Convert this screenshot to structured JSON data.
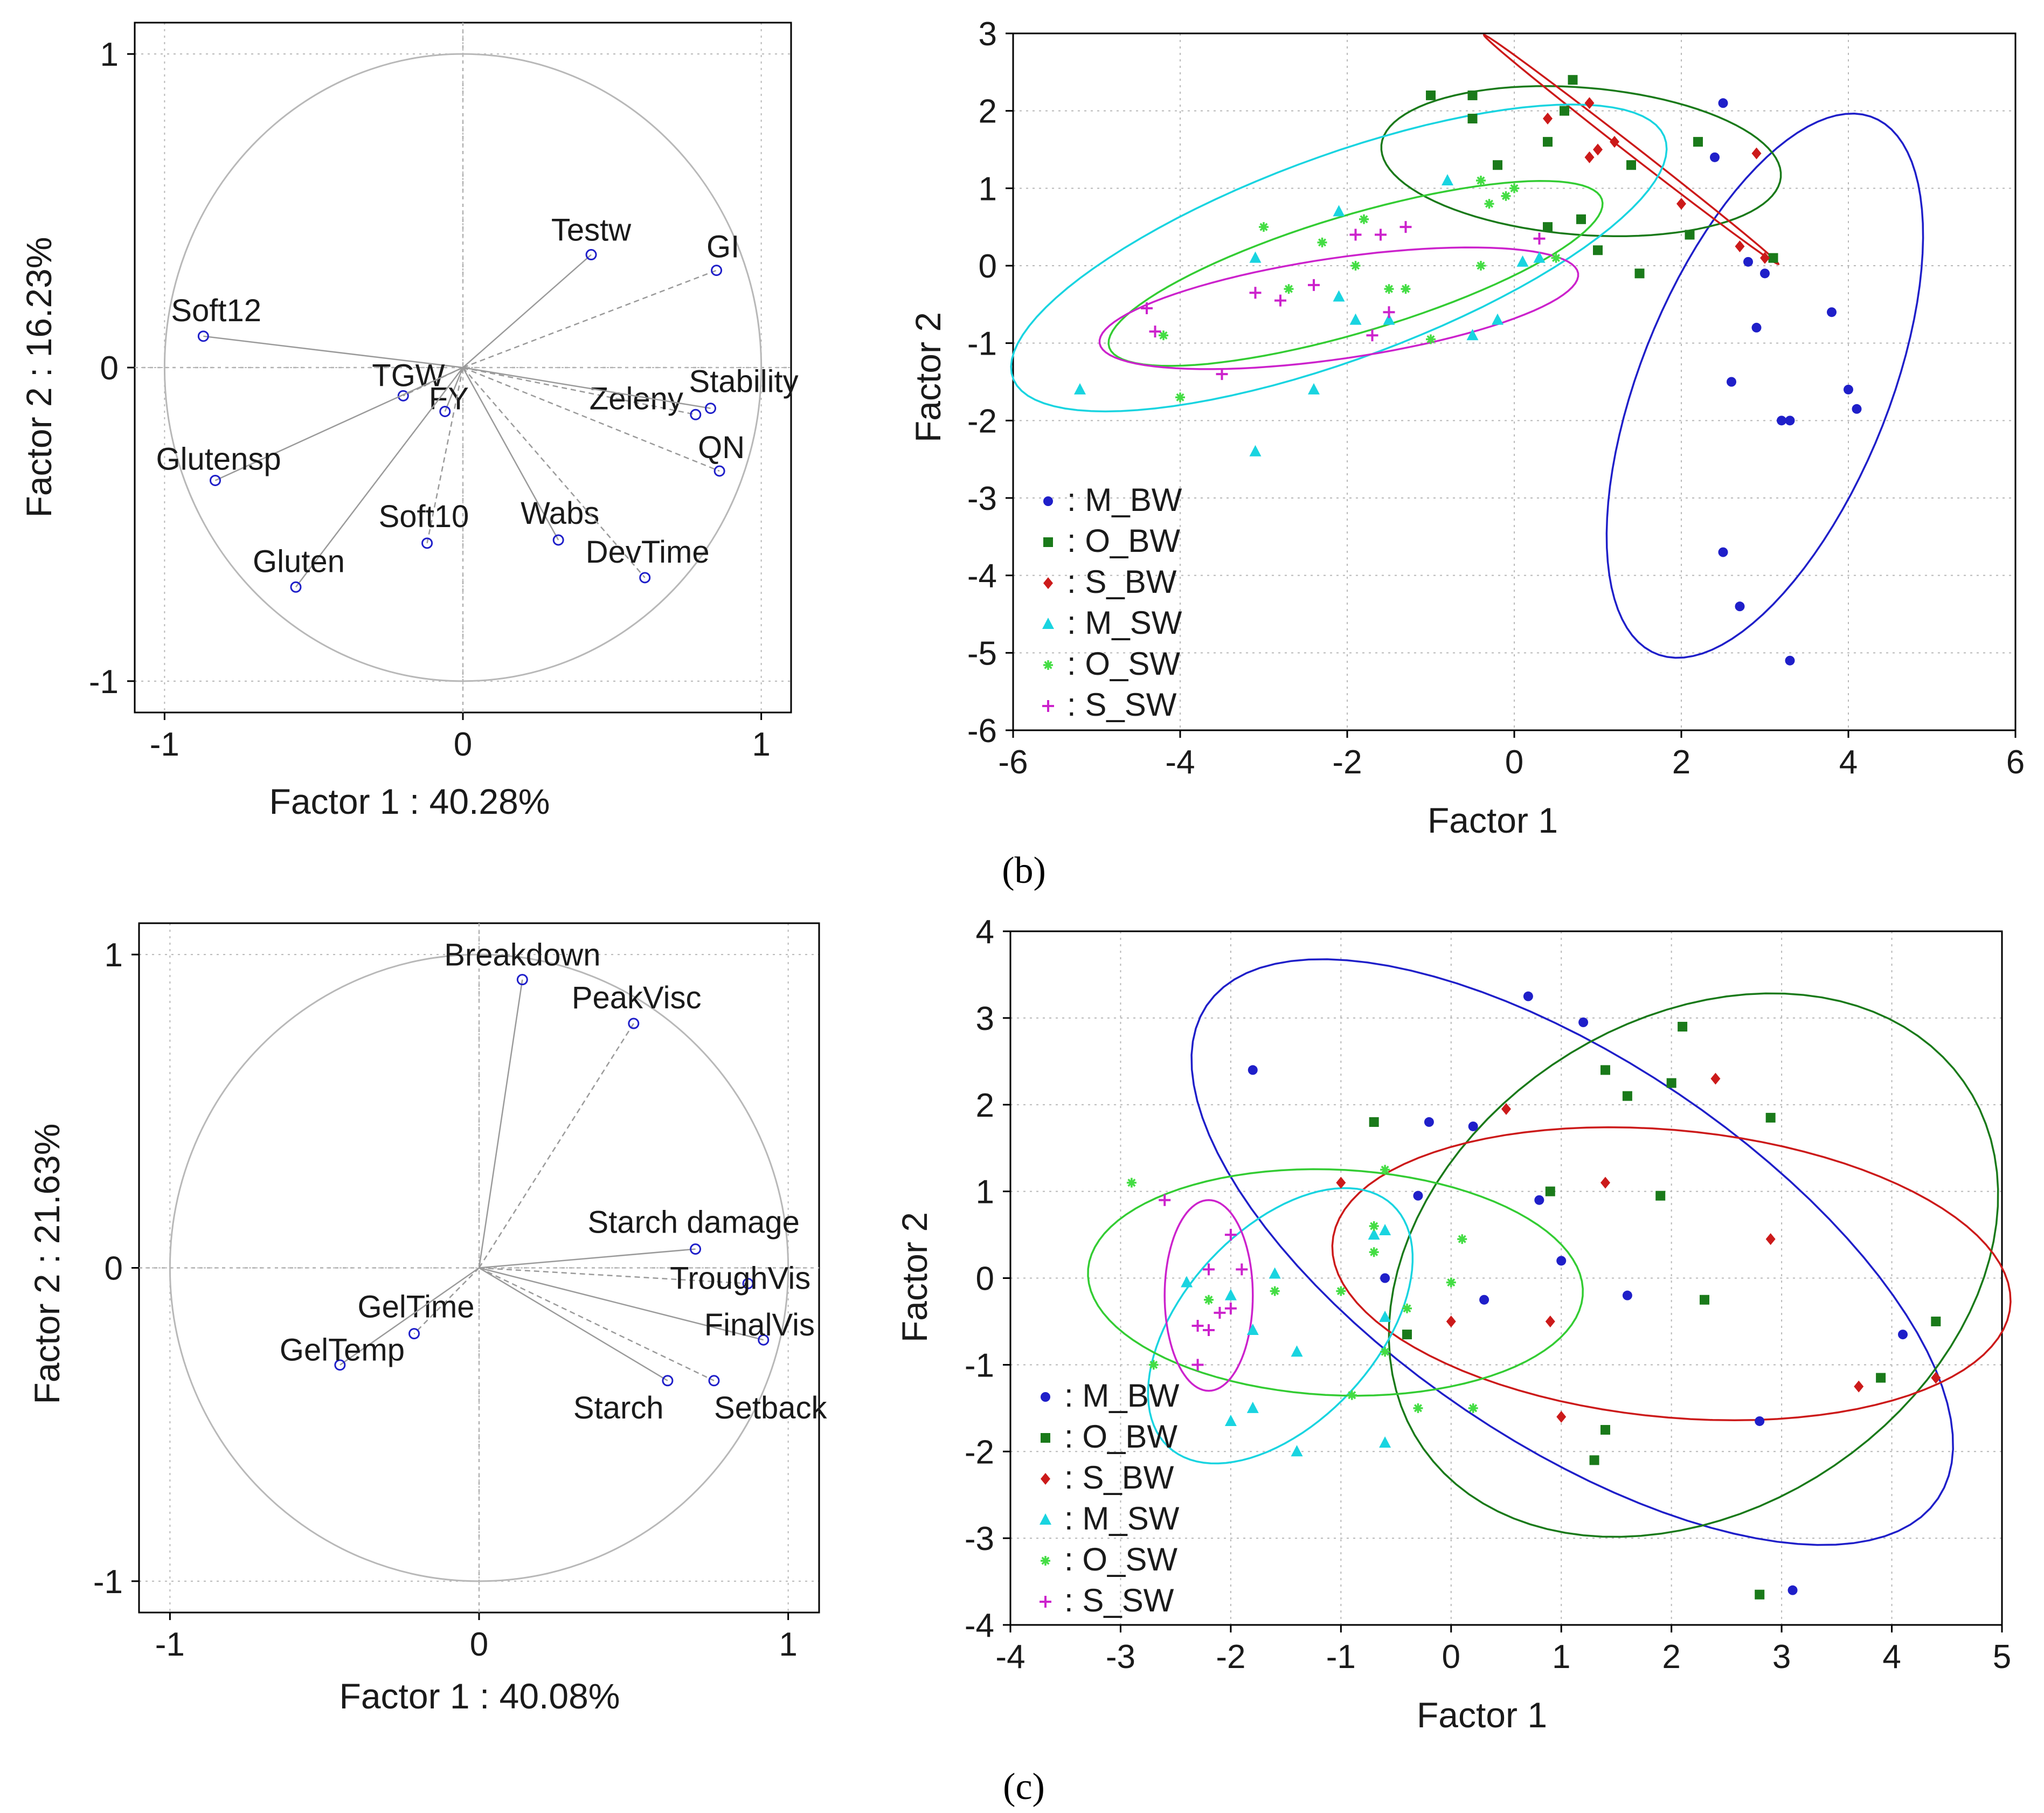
{
  "panel_labels": {
    "b": "(b)",
    "c": "(c)"
  },
  "chart_data": [
    {
      "type": "scatter",
      "subtype": "loading-plot",
      "xlabel": "Factor 1 : 40.28%",
      "ylabel": "Factor 2 : 16.23%",
      "xlim": [
        -1.1,
        1.1
      ],
      "ylim": [
        -1.1,
        1.1
      ],
      "xticks": [
        "-1",
        "0",
        "1"
      ],
      "yticks": [
        "1",
        "0",
        "-1"
      ],
      "xtick_values": [
        -1,
        0,
        1
      ],
      "ytick_values": [
        1,
        0,
        -1
      ],
      "variables": [
        {
          "name": "Testw",
          "x": 0.43,
          "y": 0.36
        },
        {
          "name": "GI",
          "x": 0.85,
          "y": 0.31
        },
        {
          "name": "Soft12",
          "x": -0.87,
          "y": 0.1
        },
        {
          "name": "TGW",
          "x": -0.2,
          "y": -0.09
        },
        {
          "name": "FY",
          "x": -0.06,
          "y": -0.14
        },
        {
          "name": "Zeleny",
          "x": 0.78,
          "y": -0.15
        },
        {
          "name": "Stability",
          "x": 0.83,
          "y": -0.13
        },
        {
          "name": "QN",
          "x": 0.86,
          "y": -0.33
        },
        {
          "name": "Glutensp",
          "x": -0.83,
          "y": -0.36
        },
        {
          "name": "Soft10",
          "x": -0.12,
          "y": -0.56
        },
        {
          "name": "Wabs",
          "x": 0.32,
          "y": -0.55
        },
        {
          "name": "DevTime",
          "x": 0.61,
          "y": -0.67
        },
        {
          "name": "Gluten",
          "x": -0.56,
          "y": -0.7
        }
      ]
    },
    {
      "type": "scatter",
      "xlabel": "Factor 1",
      "ylabel": "Factor 2",
      "xlim": [
        -6,
        6
      ],
      "ylim": [
        -6,
        3
      ],
      "xticks": [
        "-6",
        "-4",
        "-2",
        "0",
        "2",
        "4",
        "6"
      ],
      "yticks": [
        "3",
        "2",
        "1",
        "0",
        "-1",
        "-2",
        "-3",
        "-4",
        "-5",
        "-6"
      ],
      "xtick_values": [
        -6,
        -4,
        -2,
        0,
        2,
        4,
        6
      ],
      "ytick_values": [
        3,
        2,
        1,
        0,
        -1,
        -2,
        -3,
        -4,
        -5,
        -6
      ],
      "series": [
        {
          "name": ": M_BW",
          "color": "#1f1fc9",
          "marker": "circle",
          "points": [
            [
              2.5,
              2.1
            ],
            [
              2.4,
              1.4
            ],
            [
              2.8,
              0.05
            ],
            [
              3.0,
              -0.1
            ],
            [
              2.9,
              -0.8
            ],
            [
              3.8,
              -0.6
            ],
            [
              2.6,
              -1.5
            ],
            [
              4.0,
              -1.6
            ],
            [
              4.1,
              -1.85
            ],
            [
              3.2,
              -2.0
            ],
            [
              3.3,
              -2.0
            ],
            [
              2.5,
              -3.7
            ],
            [
              2.7,
              -4.4
            ],
            [
              3.3,
              -5.1
            ]
          ]
        },
        {
          "name": ": O_BW",
          "color": "#1a7a1a",
          "marker": "square",
          "points": [
            [
              -1.0,
              2.2
            ],
            [
              -0.5,
              2.2
            ],
            [
              -0.5,
              1.9
            ],
            [
              0.7,
              2.4
            ],
            [
              0.4,
              1.6
            ],
            [
              -0.2,
              1.3
            ],
            [
              0.4,
              0.5
            ],
            [
              0.8,
              0.6
            ],
            [
              1.0,
              0.2
            ],
            [
              1.4,
              1.3
            ],
            [
              2.2,
              1.6
            ],
            [
              2.1,
              0.4
            ],
            [
              3.1,
              0.1
            ],
            [
              1.5,
              -0.1
            ],
            [
              0.6,
              2.0
            ]
          ]
        },
        {
          "name": ": S_BW",
          "color": "#cc1a1a",
          "marker": "diamond",
          "points": [
            [
              0.4,
              1.9
            ],
            [
              0.9,
              2.1
            ],
            [
              0.9,
              1.4
            ],
            [
              1.0,
              1.5
            ],
            [
              1.2,
              1.6
            ],
            [
              2.0,
              0.8
            ],
            [
              2.9,
              1.45
            ],
            [
              3.0,
              0.1
            ],
            [
              2.7,
              0.25
            ]
          ]
        },
        {
          "name": ": M_SW",
          "color": "#19d4e0",
          "marker": "triangle",
          "points": [
            [
              -5.2,
              -1.6
            ],
            [
              -3.1,
              0.1
            ],
            [
              -3.1,
              -2.4
            ],
            [
              -2.4,
              -1.6
            ],
            [
              -2.1,
              0.7
            ],
            [
              -2.1,
              -0.4
            ],
            [
              -1.9,
              -0.7
            ],
            [
              -1.5,
              -0.7
            ],
            [
              -0.5,
              -0.9
            ],
            [
              -0.2,
              -0.7
            ],
            [
              0.1,
              0.05
            ],
            [
              0.3,
              0.1
            ],
            [
              -0.8,
              1.1
            ]
          ]
        },
        {
          "name": ": O_SW",
          "color": "#44dd44",
          "marker": "asterisk",
          "points": [
            [
              -4.2,
              -0.9
            ],
            [
              -4.0,
              -1.7
            ],
            [
              -3.0,
              0.5
            ],
            [
              -2.7,
              -0.3
            ],
            [
              -2.3,
              0.3
            ],
            [
              -1.8,
              0.6
            ],
            [
              -1.9,
              0.0
            ],
            [
              -1.5,
              -0.3
            ],
            [
              -1.3,
              -0.3
            ],
            [
              -1.0,
              -0.95
            ],
            [
              -0.4,
              0.0
            ],
            [
              -0.3,
              0.8
            ],
            [
              -0.1,
              0.9
            ],
            [
              0.0,
              1.0
            ],
            [
              0.5,
              0.1
            ],
            [
              -0.4,
              1.1
            ]
          ]
        },
        {
          "name": ": S_SW",
          "color": "#cc22cc",
          "marker": "plus",
          "points": [
            [
              -4.4,
              -0.55
            ],
            [
              -4.3,
              -0.85
            ],
            [
              -3.5,
              -1.4
            ],
            [
              -3.1,
              -0.35
            ],
            [
              -2.8,
              -0.45
            ],
            [
              -2.4,
              -0.25
            ],
            [
              -1.9,
              0.4
            ],
            [
              -1.6,
              0.4
            ],
            [
              -1.5,
              -0.6
            ],
            [
              -1.3,
              0.5
            ],
            [
              0.3,
              0.35
            ],
            [
              -1.7,
              -0.9
            ]
          ]
        }
      ],
      "ellipses": [
        {
          "series": ": M_BW",
          "cx": 3.0,
          "cy": -1.55,
          "rx": 3.7,
          "ry": 1.5,
          "angle_deg": 70
        },
        {
          "series": ": O_BW",
          "cx": 0.8,
          "cy": 1.35,
          "rx": 2.4,
          "ry": 0.95,
          "angle_deg": -5
        },
        {
          "series": ": S_BW",
          "cx": 1.4,
          "cy": 1.5,
          "rx": 2.3,
          "ry": 0.06,
          "angle_deg": -40
        },
        {
          "series": ": M_SW",
          "cx": -2.1,
          "cy": 0.1,
          "rx": 4.2,
          "ry": 1.3,
          "angle_deg": 22
        },
        {
          "series": ": O_SW",
          "cx": -1.9,
          "cy": -0.1,
          "rx": 3.1,
          "ry": 0.75,
          "angle_deg": 18
        },
        {
          "series": ": S_SW",
          "cx": -2.1,
          "cy": -0.55,
          "rx": 2.9,
          "ry": 0.65,
          "angle_deg": 9
        }
      ],
      "legend_position": "bottom-left"
    },
    {
      "type": "scatter",
      "subtype": "loading-plot",
      "xlabel": "Factor 1 : 40.08%",
      "ylabel": "Factor 2 : 21.63%",
      "xlim": [
        -1.1,
        1.1
      ],
      "ylim": [
        -1.1,
        1.1
      ],
      "xticks": [
        "-1",
        "0",
        "1"
      ],
      "yticks": [
        "1",
        "0",
        "-1"
      ],
      "xtick_values": [
        -1,
        0,
        1
      ],
      "ytick_values": [
        1,
        0,
        -1
      ],
      "variables": [
        {
          "name": "Breakdown",
          "x": 0.14,
          "y": 0.92
        },
        {
          "name": "PeakVisc",
          "x": 0.5,
          "y": 0.78
        },
        {
          "name": "Starch damage",
          "x": 0.7,
          "y": 0.06
        },
        {
          "name": "TroughVis",
          "x": 0.87,
          "y": -0.05
        },
        {
          "name": "FinalVis",
          "x": 0.92,
          "y": -0.23
        },
        {
          "name": "Setback",
          "x": 0.76,
          "y": -0.36
        },
        {
          "name": "Starch",
          "x": 0.61,
          "y": -0.36
        },
        {
          "name": "GelTime",
          "x": -0.21,
          "y": -0.21
        },
        {
          "name": "GelTemp",
          "x": -0.45,
          "y": -0.31
        }
      ]
    },
    {
      "type": "scatter",
      "xlabel": "Factor 1",
      "ylabel": "Factor 2",
      "xlim": [
        -4,
        5
      ],
      "ylim": [
        -4,
        4
      ],
      "xticks": [
        "-4",
        "-3",
        "-2",
        "-1",
        "0",
        "1",
        "2",
        "3",
        "4",
        "5"
      ],
      "yticks": [
        "4",
        "3",
        "2",
        "1",
        "0",
        "-1",
        "-2",
        "-3",
        "-4"
      ],
      "xtick_values": [
        -4,
        -3,
        -2,
        -1,
        0,
        1,
        2,
        3,
        4,
        5
      ],
      "ytick_values": [
        4,
        3,
        2,
        1,
        0,
        -1,
        -2,
        -3,
        -4
      ],
      "series": [
        {
          "name": ": M_BW",
          "color": "#1f1fc9",
          "marker": "circle",
          "points": [
            [
              -1.8,
              2.4
            ],
            [
              0.7,
              3.25
            ],
            [
              1.2,
              2.95
            ],
            [
              -0.2,
              1.8
            ],
            [
              0.2,
              1.75
            ],
            [
              -0.3,
              0.95
            ],
            [
              0.8,
              0.9
            ],
            [
              1.0,
              0.2
            ],
            [
              -0.6,
              0.0
            ],
            [
              0.3,
              -0.25
            ],
            [
              1.6,
              -0.2
            ],
            [
              2.8,
              -1.65
            ],
            [
              4.1,
              -0.65
            ],
            [
              3.1,
              -3.6
            ]
          ]
        },
        {
          "name": ": O_BW",
          "color": "#1a7a1a",
          "marker": "square",
          "points": [
            [
              -0.7,
              1.8
            ],
            [
              1.4,
              2.4
            ],
            [
              1.6,
              2.1
            ],
            [
              2.0,
              2.25
            ],
            [
              2.1,
              2.9
            ],
            [
              2.9,
              1.85
            ],
            [
              1.9,
              0.95
            ],
            [
              0.9,
              1.0
            ],
            [
              -0.4,
              -0.65
            ],
            [
              2.3,
              -0.25
            ],
            [
              1.4,
              -1.75
            ],
            [
              1.3,
              -2.1
            ],
            [
              3.9,
              -1.15
            ],
            [
              4.4,
              -0.5
            ],
            [
              2.8,
              -3.65
            ]
          ]
        },
        {
          "name": ": S_BW",
          "color": "#cc1a1a",
          "marker": "diamond",
          "points": [
            [
              0.5,
              1.95
            ],
            [
              1.4,
              1.1
            ],
            [
              2.4,
              2.3
            ],
            [
              -1.0,
              1.1
            ],
            [
              0.0,
              -0.5
            ],
            [
              0.9,
              -0.5
            ],
            [
              1.0,
              -1.6
            ],
            [
              2.9,
              0.45
            ],
            [
              3.7,
              -1.25
            ],
            [
              4.4,
              -1.15
            ]
          ]
        },
        {
          "name": ": M_SW",
          "color": "#19d4e0",
          "marker": "triangle",
          "points": [
            [
              -2.4,
              -0.05
            ],
            [
              -2.0,
              -0.2
            ],
            [
              -1.6,
              0.05
            ],
            [
              -1.8,
              -0.6
            ],
            [
              -1.4,
              -0.85
            ],
            [
              -0.7,
              0.5
            ],
            [
              -0.6,
              -0.45
            ],
            [
              -2.0,
              -1.65
            ],
            [
              -1.8,
              -1.5
            ],
            [
              -1.4,
              -2.0
            ],
            [
              -0.6,
              -1.9
            ],
            [
              -0.6,
              0.55
            ]
          ]
        },
        {
          "name": ": O_SW",
          "color": "#44dd44",
          "marker": "asterisk",
          "points": [
            [
              -2.9,
              1.1
            ],
            [
              -2.7,
              -1.0
            ],
            [
              -2.2,
              -0.25
            ],
            [
              -1.6,
              -0.15
            ],
            [
              -1.0,
              -0.15
            ],
            [
              -0.7,
              0.6
            ],
            [
              -0.7,
              0.3
            ],
            [
              -0.6,
              1.25
            ],
            [
              -0.4,
              -0.35
            ],
            [
              -0.6,
              -0.85
            ],
            [
              -0.9,
              -1.35
            ],
            [
              -0.3,
              -1.5
            ],
            [
              0.0,
              -0.05
            ],
            [
              0.1,
              0.45
            ],
            [
              0.2,
              -1.5
            ]
          ]
        },
        {
          "name": ": S_SW",
          "color": "#cc22cc",
          "marker": "plus",
          "points": [
            [
              -2.6,
              0.9
            ],
            [
              -2.2,
              0.1
            ],
            [
              -2.1,
              -0.4
            ],
            [
              -2.2,
              -0.6
            ],
            [
              -2.0,
              0.5
            ],
            [
              -2.3,
              -0.55
            ],
            [
              -2.0,
              -0.35
            ],
            [
              -2.3,
              -1.0
            ],
            [
              -1.9,
              0.1
            ]
          ]
        }
      ],
      "ellipses": [
        {
          "series": ": M_BW",
          "cx": 1.1,
          "cy": 0.3,
          "rx": 4.4,
          "ry": 2.0,
          "angle_deg": -44
        },
        {
          "series": ": O_BW",
          "cx": 2.2,
          "cy": 0.15,
          "rx": 3.35,
          "ry": 2.5,
          "angle_deg": 58
        },
        {
          "series": ": S_BW",
          "cx": 2.0,
          "cy": 0.05,
          "rx": 3.1,
          "ry": 1.65,
          "angle_deg": -8
        },
        {
          "series": ": M_SW",
          "cx": -1.55,
          "cy": -0.55,
          "rx": 1.75,
          "ry": 0.95,
          "angle_deg": 60
        },
        {
          "series": ": O_SW",
          "cx": -1.05,
          "cy": -0.05,
          "rx": 2.25,
          "ry": 1.3,
          "angle_deg": -4
        },
        {
          "series": ": S_SW",
          "cx": -2.2,
          "cy": -0.2,
          "rx": 1.1,
          "ry": 0.4,
          "angle_deg": 90
        }
      ],
      "legend_position": "bottom-left"
    }
  ]
}
